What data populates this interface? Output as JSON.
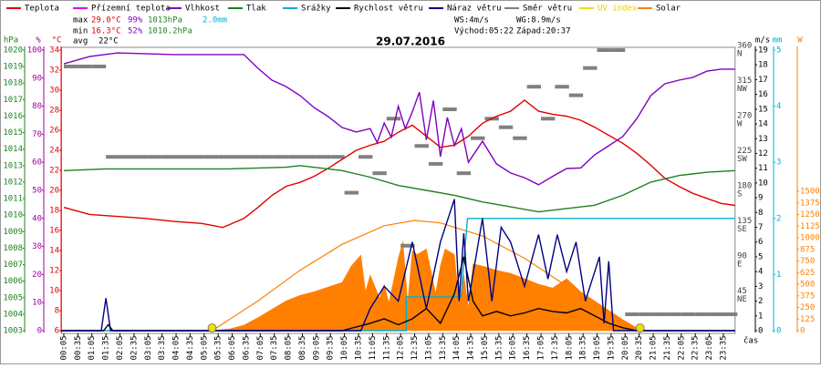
{
  "chart_data": {
    "type": "line",
    "title": "29.07.2016",
    "x_label": "čas",
    "xlim": [
      0,
      1440
    ],
    "xticks": [
      {
        "value": 5,
        "label": "00:05"
      },
      {
        "value": 35,
        "label": "00:35"
      },
      {
        "value": 65,
        "label": "01:05"
      },
      {
        "value": 95,
        "label": "01:35"
      },
      {
        "value": 125,
        "label": "02:05"
      },
      {
        "value": 155,
        "label": "02:35"
      },
      {
        "value": 185,
        "label": "03:05"
      },
      {
        "value": 215,
        "label": "03:35"
      },
      {
        "value": 245,
        "label": "04:05"
      },
      {
        "value": 275,
        "label": "04:35"
      },
      {
        "value": 305,
        "label": "05:05"
      },
      {
        "value": 335,
        "label": "05:35"
      },
      {
        "value": 365,
        "label": "06:05"
      },
      {
        "value": 395,
        "label": "06:35"
      },
      {
        "value": 425,
        "label": "07:05"
      },
      {
        "value": 455,
        "label": "07:35"
      },
      {
        "value": 485,
        "label": "08:05"
      },
      {
        "value": 515,
        "label": "08:35"
      },
      {
        "value": 545,
        "label": "09:05"
      },
      {
        "value": 575,
        "label": "09:35"
      },
      {
        "value": 605,
        "label": "10:05"
      },
      {
        "value": 635,
        "label": "10:35"
      },
      {
        "value": 665,
        "label": "11:05"
      },
      {
        "value": 695,
        "label": "11:35"
      },
      {
        "value": 725,
        "label": "12:05"
      },
      {
        "value": 755,
        "label": "12:35"
      },
      {
        "value": 785,
        "label": "13:05"
      },
      {
        "value": 815,
        "label": "13:35"
      },
      {
        "value": 845,
        "label": "14:05"
      },
      {
        "value": 875,
        "label": "14:35"
      },
      {
        "value": 905,
        "label": "15:05"
      },
      {
        "value": 935,
        "label": "15:35"
      },
      {
        "value": 965,
        "label": "16:05"
      },
      {
        "value": 995,
        "label": "16:35"
      },
      {
        "value": 1025,
        "label": "17:05"
      },
      {
        "value": 1055,
        "label": "17:35"
      },
      {
        "value": 1085,
        "label": "18:05"
      },
      {
        "value": 1115,
        "label": "18:35"
      },
      {
        "value": 1145,
        "label": "19:05"
      },
      {
        "value": 1175,
        "label": "19:35"
      },
      {
        "value": 1205,
        "label": "20:05"
      },
      {
        "value": 1235,
        "label": "20:35"
      },
      {
        "value": 1265,
        "label": "21:05"
      },
      {
        "value": 1295,
        "label": "21:35"
      },
      {
        "value": 1325,
        "label": "22:05"
      },
      {
        "value": 1355,
        "label": "22:35"
      },
      {
        "value": 1385,
        "label": "23:05"
      },
      {
        "value": 1415,
        "label": "23:35"
      }
    ],
    "axes": [
      {
        "title": "hPa",
        "color": "#208020",
        "lim": [
          1003,
          1020
        ],
        "ticks": [
          1003,
          1004,
          1005,
          1006,
          1007,
          1008,
          1009,
          1010,
          1011,
          1012,
          1013,
          1014,
          1015,
          1016,
          1017,
          1018,
          1019,
          1020
        ]
      },
      {
        "title": "%",
        "color": "#a000a0",
        "lim": [
          0,
          100
        ],
        "ticks": [
          0,
          10,
          20,
          30,
          40,
          50,
          60,
          70,
          80,
          90,
          100
        ]
      },
      {
        "title": "°C",
        "color": "#e00000",
        "lim": [
          6,
          34
        ],
        "ticks": [
          6,
          8,
          10,
          12,
          14,
          16,
          18,
          20,
          22,
          24,
          26,
          28,
          30,
          32,
          34
        ]
      },
      {
        "color": "#404040",
        "lim": [
          0,
          360
        ],
        "ticks": [
          {
            "value": 45,
            "label": "45",
            "sublabel": "NE"
          },
          {
            "value": 90,
            "label": "90",
            "sublabel": "E"
          },
          {
            "value": 135,
            "label": "135",
            "sublabel": "SE"
          },
          {
            "value": 180,
            "label": "180",
            "sublabel": "S"
          },
          {
            "value": 225,
            "label": "225",
            "sublabel": "SW"
          },
          {
            "value": 270,
            "label": "270",
            "sublabel": "W"
          },
          {
            "value": 315,
            "label": "315",
            "sublabel": "NW"
          },
          {
            "value": 360,
            "label": "360",
            "sublabel": "N"
          }
        ]
      },
      {
        "title": "m/s",
        "color": "#000000",
        "lim": [
          0,
          19
        ],
        "ticks": [
          0,
          1,
          2,
          3,
          4,
          5,
          6,
          7,
          8,
          9,
          10,
          11,
          12,
          13,
          14,
          15,
          16,
          17,
          18,
          19
        ]
      },
      {
        "title": "mm",
        "color": "#00b0d0",
        "lim": [
          0,
          5
        ],
        "ticks": [
          0,
          1,
          2,
          3,
          4,
          5
        ]
      },
      {
        "title": "W",
        "color": "#ff8000",
        "lim": [
          0,
          3020
        ],
        "ticks": [
          0,
          125,
          250,
          375,
          500,
          625,
          750,
          875,
          1000,
          1125,
          1250,
          1375,
          1500
        ]
      }
    ],
    "stats": {
      "max": "max",
      "max_temp": "29.0°C",
      "max_hum": "99%",
      "max_press": "1013hPa",
      "rain": "2.0mm",
      "min": "min",
      "min_temp": "16.3°C",
      "min_hum": "52%",
      "min_press": "1010.2hPa",
      "avg": "avg",
      "avg_temp": "22°C",
      "ws": "WS:4m/s",
      "wg": "WG:8.9m/s",
      "sunrise": "Východ:05:22",
      "sunset": "Západ:20:37"
    },
    "sun_markers": {
      "color": "#f0e000",
      "x": [
        322,
        1237
      ]
    },
    "series": [
      {
        "name": "Teplota",
        "color": "#e00000",
        "style": "line",
        "axis": 2,
        "x": [
          5,
          60,
          120,
          180,
          240,
          300,
          345,
          390,
          420,
          450,
          480,
          510,
          540,
          570,
          600,
          630,
          660,
          690,
          720,
          750,
          780,
          810,
          840,
          870,
          900,
          930,
          960,
          990,
          1020,
          1050,
          1080,
          1110,
          1140,
          1170,
          1200,
          1230,
          1260,
          1290,
          1320,
          1350,
          1380,
          1410,
          1440
        ],
        "values": [
          18.3,
          17.6,
          17.4,
          17.2,
          16.9,
          16.7,
          16.3,
          17.2,
          18.3,
          19.5,
          20.4,
          20.8,
          21.4,
          22.2,
          23.1,
          24.0,
          24.5,
          24.9,
          25.8,
          26.5,
          25.4,
          24.3,
          24.5,
          25.4,
          26.7,
          27.4,
          27.9,
          29.0,
          27.9,
          27.6,
          27.4,
          27.0,
          26.3,
          25.5,
          24.7,
          23.7,
          22.5,
          21.2,
          20.4,
          19.7,
          19.2,
          18.7,
          18.5
        ]
      },
      {
        "name": "Přízemní teplota",
        "color": "#e000e0",
        "style": "line",
        "axis": 2,
        "x": [],
        "values": []
      },
      {
        "name": "Vlhkost",
        "color": "#8000c0",
        "style": "line",
        "axis": 1,
        "x": [
          5,
          60,
          120,
          240,
          360,
          390,
          420,
          450,
          480,
          510,
          540,
          570,
          600,
          630,
          660,
          675,
          690,
          705,
          720,
          735,
          750,
          765,
          780,
          795,
          810,
          825,
          840,
          855,
          870,
          900,
          930,
          960,
          990,
          1020,
          1050,
          1080,
          1110,
          1140,
          1170,
          1200,
          1230,
          1260,
          1290,
          1320,
          1350,
          1380,
          1410,
          1440
        ],
        "values": [
          95.1,
          97.7,
          99,
          98.4,
          98.4,
          98.4,
          93.5,
          89.3,
          87.0,
          83.8,
          79.5,
          76.3,
          72.4,
          70.8,
          72,
          67,
          74,
          69,
          80,
          72,
          78,
          85,
          68,
          82,
          62,
          76,
          66,
          72,
          60,
          67.5,
          59.4,
          56.2,
          54.5,
          52,
          55,
          57.8,
          58,
          62.7,
          65.9,
          69.2,
          75.6,
          83.8,
          88.0,
          89.3,
          90.3,
          92.5,
          93.2,
          93.2
        ]
      },
      {
        "name": "Tlak",
        "color": "#208020",
        "style": "line",
        "axis": 0,
        "x": [
          5,
          95,
          360,
          480,
          510,
          600,
          660,
          720,
          780,
          840,
          900,
          960,
          1020,
          1080,
          1140,
          1200,
          1260,
          1320,
          1380,
          1440
        ],
        "values": [
          1012.7,
          1012.8,
          1012.8,
          1012.9,
          1013.0,
          1012.7,
          1012.3,
          1011.8,
          1011.5,
          1011.2,
          1010.8,
          1010.5,
          1010.2,
          1010.4,
          1010.6,
          1011.2,
          1012.0,
          1012.4,
          1012.6,
          1012.7
        ]
      },
      {
        "name": "Srážky",
        "color": "#00b0d0",
        "style": "line",
        "axis": 5,
        "x": [
          0,
          737,
          737,
          854,
          868,
          1440
        ],
        "values": [
          0,
          0,
          0.6,
          0.6,
          2.0,
          2.0
        ]
      },
      {
        "name": "Rychlost větru",
        "color": "#000000",
        "style": "line",
        "axis": 4,
        "x": [
          0,
          90,
          100,
          110,
          600,
          660,
          690,
          720,
          750,
          780,
          810,
          840,
          860,
          880,
          900,
          930,
          960,
          990,
          1020,
          1050,
          1080,
          1110,
          1140,
          1170,
          1200,
          1230,
          1440
        ],
        "values": [
          0,
          0,
          0.4,
          0,
          0,
          0.5,
          0.8,
          0.4,
          0.8,
          1.5,
          0.5,
          2.5,
          5.0,
          2.0,
          1.0,
          1.3,
          1.0,
          1.2,
          1.5,
          1.3,
          1.2,
          1.5,
          1.0,
          0.5,
          0.2,
          0,
          0
        ]
      },
      {
        "name": "Náraz větru",
        "color": "#000080",
        "style": "line",
        "axis": 4,
        "x": [
          0,
          85,
          95,
          105,
          640,
          660,
          690,
          720,
          750,
          780,
          810,
          840,
          850,
          860,
          870,
          900,
          920,
          940,
          960,
          990,
          1020,
          1040,
          1060,
          1080,
          1100,
          1120,
          1150,
          1160,
          1170,
          1180,
          1200,
          1440
        ],
        "values": [
          0,
          0,
          2.2,
          0,
          0,
          1.5,
          3,
          2,
          6,
          1.5,
          6,
          8.9,
          2,
          6.6,
          2,
          7.6,
          2,
          7,
          6,
          3,
          6.5,
          3.5,
          6.5,
          4,
          6,
          2,
          5,
          0.5,
          4.7,
          0,
          0,
          0
        ]
      },
      {
        "name": "Směr větru",
        "color": "#808080",
        "style": "dash",
        "axis": 3,
        "x": [
          5,
          35,
          65,
          95,
          125,
          155,
          185,
          215,
          245,
          275,
          305,
          335,
          365,
          395,
          425,
          455,
          485,
          515,
          545,
          575,
          605,
          635,
          665,
          695,
          725,
          755,
          785,
          815,
          845,
          875,
          905,
          935,
          965,
          995,
          1025,
          1055,
          1085,
          1115,
          1145,
          1175,
          1205,
          1235,
          1265,
          1295,
          1325,
          1355,
          1385,
          1415
        ],
        "values": [
          339,
          339,
          339,
          223,
          223,
          223,
          223,
          223,
          223,
          223,
          223,
          223,
          223,
          223,
          223,
          223,
          223,
          223,
          223,
          223,
          177,
          223,
          202,
          272,
          109,
          237,
          214,
          284,
          202,
          247,
          272,
          261,
          247,
          313,
          272,
          313,
          302,
          337,
          360,
          360,
          21,
          21,
          21,
          21,
          21,
          21,
          21,
          21
        ]
      },
      {
        "name": "UV index",
        "color": "#f0e000",
        "style": "line",
        "axis": 6,
        "x": [],
        "values": []
      },
      {
        "name": "Solar",
        "color": "#ff8000",
        "style": "area",
        "axis": 6,
        "x": [
          320,
          360,
          390,
          420,
          450,
          480,
          510,
          540,
          570,
          600,
          620,
          640,
          650,
          660,
          680,
          690,
          700,
          720,
          730,
          740,
          750,
          760,
          780,
          800,
          810,
          820,
          840,
          850,
          860,
          870,
          880,
          900,
          930,
          960,
          990,
          1020,
          1050,
          1080,
          1110,
          1140,
          1170,
          1200,
          1230,
          1240
        ],
        "values": [
          0,
          20,
          60,
          140,
          230,
          320,
          380,
          420,
          470,
          520,
          700,
          814,
          420,
          600,
          350,
          500,
          300,
          780,
          961,
          300,
          863,
          820,
          880,
          400,
          700,
          880,
          820,
          300,
          600,
          250,
          720,
          696,
          650,
          618,
          560,
          500,
          460,
          560,
          420,
          320,
          220,
          120,
          30,
          0
        ],
        "clear_sky": {
          "x": [
            322,
            420,
            510,
            600,
            690,
            755,
            810,
            900,
            990,
            1080,
            1170,
            1237
          ],
          "values": [
            0,
            320,
            650,
            930,
            1130,
            1186,
            1160,
            1020,
            780,
            480,
            170,
            0
          ]
        }
      }
    ]
  }
}
